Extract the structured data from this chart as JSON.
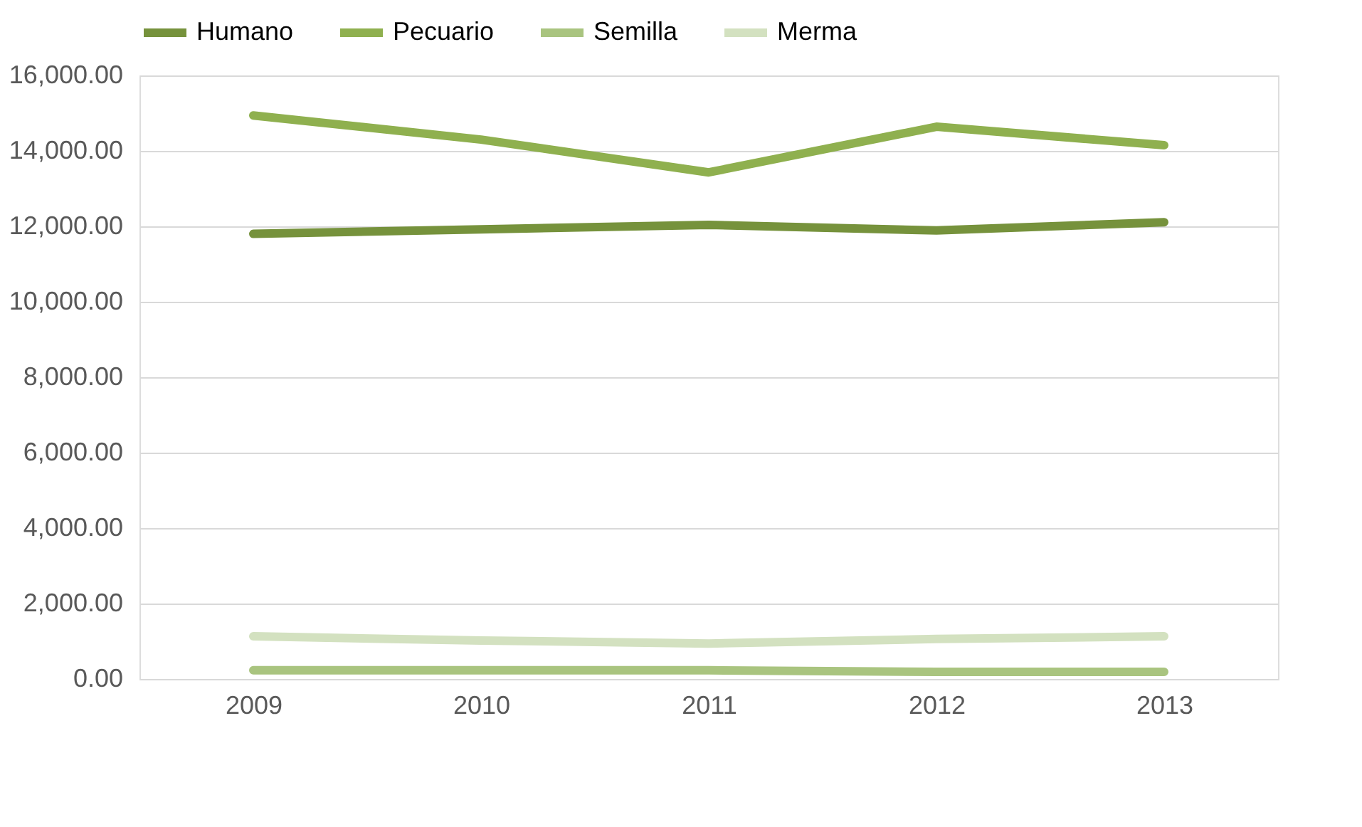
{
  "chart_data": {
    "type": "line",
    "categories": [
      "2009",
      "2010",
      "2011",
      "2012",
      "2013"
    ],
    "series": [
      {
        "name": "Humano",
        "color": "#76923c",
        "values": [
          11800,
          11920,
          12040,
          11890,
          12110
        ]
      },
      {
        "name": "Pecuario",
        "color": "#8fb04f",
        "values": [
          14940,
          14300,
          13430,
          14640,
          14150
        ]
      },
      {
        "name": "Semilla",
        "color": "#a9c47f",
        "values": [
          230,
          230,
          230,
          190,
          190
        ]
      },
      {
        "name": "Merma",
        "color": "#d3e1c0",
        "values": [
          1130,
          1020,
          940,
          1060,
          1130
        ]
      }
    ],
    "ylim": [
      0,
      16000
    ],
    "yticks": [
      {
        "value": 0,
        "label": "0.00"
      },
      {
        "value": 2000,
        "label": "2,000.00"
      },
      {
        "value": 4000,
        "label": "4,000.00"
      },
      {
        "value": 6000,
        "label": "6,000.00"
      },
      {
        "value": 8000,
        "label": "8,000.00"
      },
      {
        "value": 10000,
        "label": "10,000.00"
      },
      {
        "value": 12000,
        "label": "12,000.00"
      },
      {
        "value": 14000,
        "label": "14,000.00"
      },
      {
        "value": 16000,
        "label": "16,000.00"
      }
    ],
    "grid": "y",
    "legend": "top",
    "marker": "none",
    "line_style": "solid"
  }
}
